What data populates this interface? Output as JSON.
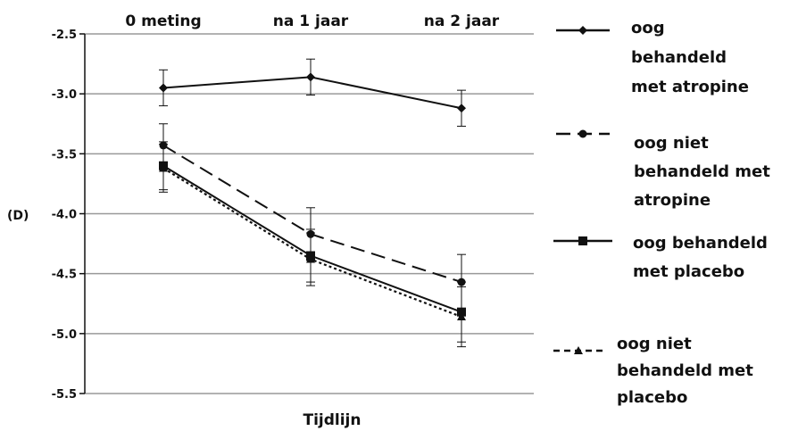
{
  "chart_data": {
    "type": "line",
    "title": "",
    "xlabel": "Tijdlijn",
    "ylabel": "(D)",
    "categories": [
      "0 meting",
      "na 1 jaar",
      "na 2 jaar"
    ],
    "ylim": [
      -5.5,
      -2.5
    ],
    "yticks": [
      "-2.5",
      "-3.0",
      "-3.5",
      "-4.0",
      "-4.5",
      "-5.0",
      "-5.5"
    ],
    "grid": "horizontal",
    "legend_position": "right",
    "error_bars": true,
    "series": [
      {
        "name": "oog behandeld met atropine",
        "legend_lines": [
          "oog",
          "behandeld",
          "met atropine"
        ],
        "values": [
          -2.95,
          -2.86,
          -3.12
        ],
        "errors": [
          0.15,
          0.15,
          0.15
        ],
        "line_style": "solid",
        "marker": "diamond"
      },
      {
        "name": "oog niet behandeld met atropine",
        "legend_lines": [
          "oog niet",
          "behandeld met",
          "atropine"
        ],
        "values": [
          -3.43,
          -4.17,
          -4.57
        ],
        "errors": [
          0.18,
          0.22,
          0.23
        ],
        "line_style": "dashed",
        "marker": "circle"
      },
      {
        "name": "oog behandeld met placebo",
        "legend_lines": [
          "oog behandeld",
          "met placebo"
        ],
        "values": [
          -3.6,
          -4.35,
          -4.82
        ],
        "errors": [
          0.2,
          0.22,
          0.25
        ],
        "line_style": "solid",
        "marker": "square"
      },
      {
        "name": "oog niet behandeld met placebo",
        "legend_lines": [
          "oog niet",
          "behandeld met",
          "placebo"
        ],
        "values": [
          -3.62,
          -4.38,
          -4.86
        ],
        "errors": [
          0.2,
          0.22,
          0.25
        ],
        "line_style": "dotted",
        "marker": "triangle"
      }
    ],
    "colors": {
      "line": "#111111",
      "grid": "#999999",
      "axis": "#111111"
    }
  }
}
